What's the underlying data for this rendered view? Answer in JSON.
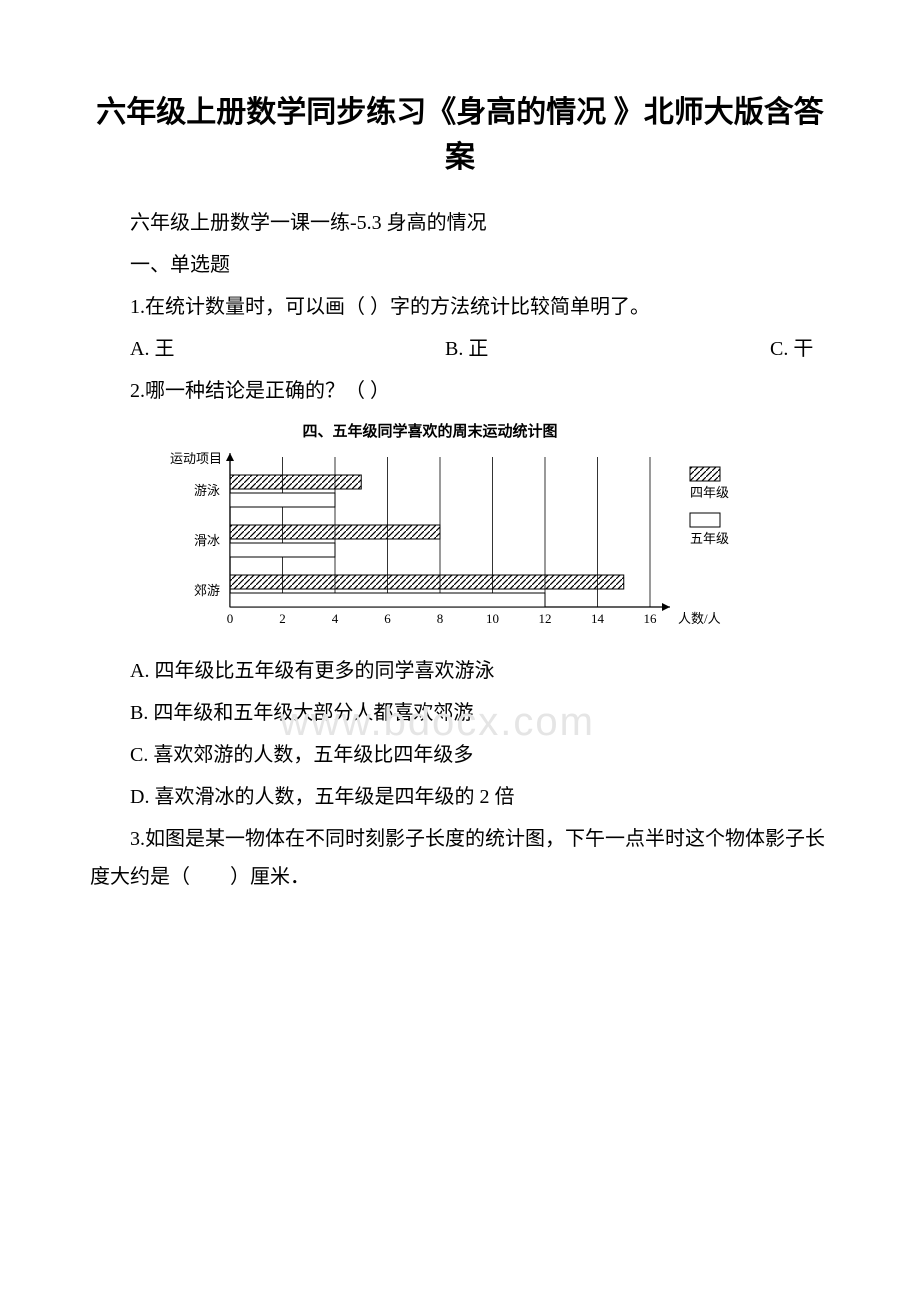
{
  "title": "六年级上册数学同步练习《身高的情况 》北师大版含答案",
  "subtitle": "六年级上册数学一课一练-5.3 身高的情况",
  "section1": "一、单选题",
  "q1": {
    "stem": "1.在统计数量时，可以画（   ）字的方法统计比较简单明了。",
    "optA": "A. 王",
    "optB": "B. 正",
    "optC": "C. 干"
  },
  "q2": {
    "stem": "2.哪一种结论是正确的？（   ）",
    "chart_title": "四、五年级同学喜欢的周末运动统计图",
    "y_label": "运动项目",
    "x_label": "人数/人",
    "legend_a": "四年级",
    "legend_b": "五年级",
    "ticks": [
      "0",
      "2",
      "4",
      "6",
      "8",
      "10",
      "12",
      "14",
      "16"
    ],
    "cats": [
      "游泳",
      "滑冰",
      "郊游"
    ],
    "data": {
      "游泳": {
        "g4": 5,
        "g5": 4
      },
      "滑冰": {
        "g4": 8,
        "g5": 4
      },
      "郊游": {
        "g4": 15,
        "g5": 12
      }
    },
    "colors": {
      "axis": "#000000",
      "bar_stroke": "#000000",
      "hatch": "#000000",
      "bg": "#ffffff"
    },
    "optA": "A. 四年级比五年级有更多的同学喜欢游泳",
    "optB": "B. 四年级和五年级大部分人都喜欢郊游",
    "optC": "C. 喜欢郊游的人数，五年级比四年级多",
    "optD": "D. 喜欢滑冰的人数，五年级是四年级的 2 倍"
  },
  "q3": {
    "stem": "3.如图是某一物体在不同时刻影子长度的统计图，下午一点半时这个物体影子长度大约是（　　）厘米．"
  },
  "watermark": "www.bdocx.com"
}
